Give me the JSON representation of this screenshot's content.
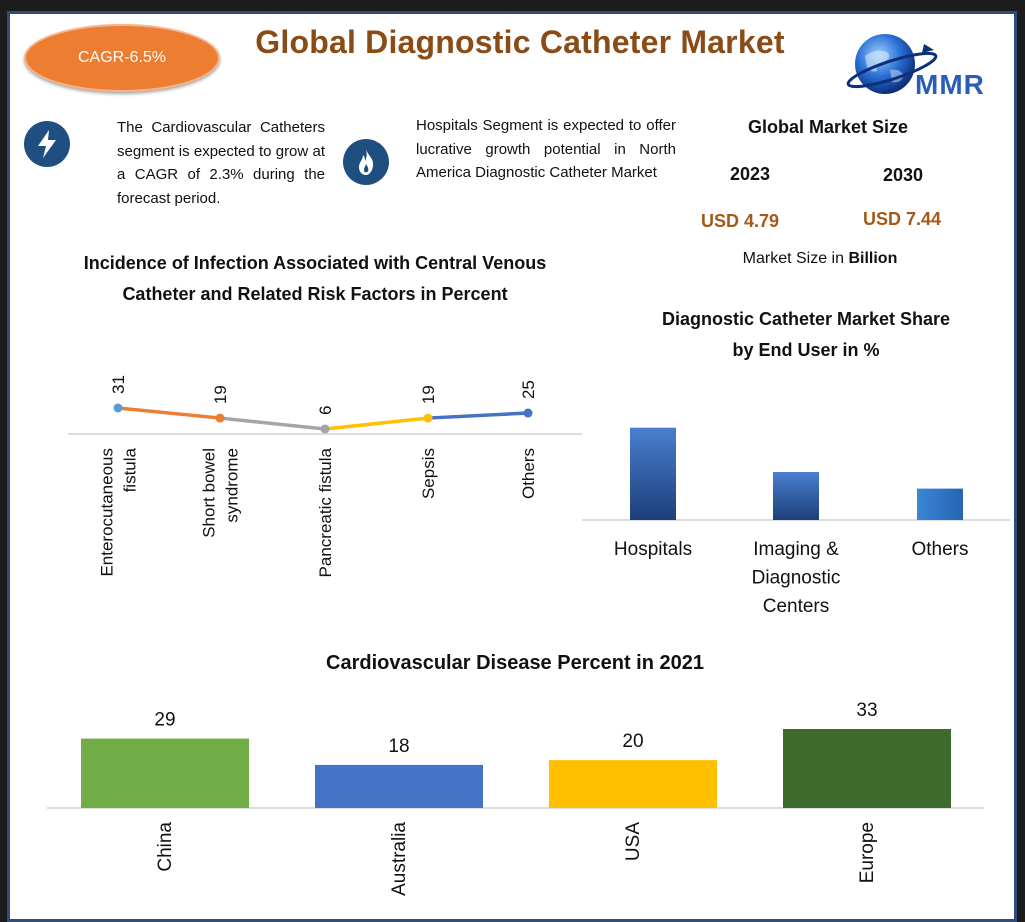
{
  "header": {
    "cagr_badge": "CAGR-6.5%",
    "title": "Global Diagnostic Catheter Market",
    "logo_text": "MMR"
  },
  "insights": [
    {
      "icon": "lightning-icon",
      "text": "The Cardiovascular Catheters segment is expected to grow at a CAGR of 2.3% during the forecast period."
    },
    {
      "icon": "flame-icon",
      "text": "Hospitals Segment is expected to offer lucrative growth potential in North America Diagnostic Catheter Market"
    }
  ],
  "market_size": {
    "title": "Global Market Size",
    "year_1": "2023",
    "year_2": "2030",
    "value_1": "USD 4.79",
    "value_2": "USD 7.44",
    "unit_prefix": "Market Size in",
    "unit_bold": "Billion"
  },
  "colors": {
    "title_brown": "#8a4b16",
    "value_brown": "#a45a16",
    "badge_orange": "#ed7d31",
    "icon_blue": "#1f4f80",
    "frame_blue": "#2e4d7a"
  },
  "chart_data": [
    {
      "type": "line",
      "title_line1": "Incidence of Infection Associated with Central Venous",
      "title_line2": "Catheter and Related Risk Factors in Percent",
      "categories": [
        "Enterocutaneous fistula",
        "Short bowel syndrome",
        "Pancreatic fistula",
        "Sepsis",
        "Others"
      ],
      "category_lines": [
        [
          "Enterocutaneous",
          "fistula"
        ],
        [
          "Short bowel",
          "syndrome"
        ],
        [
          "Pancreatic fistula"
        ],
        [
          "Sepsis"
        ],
        [
          "Others"
        ]
      ],
      "values": [
        31,
        19,
        6,
        19,
        25
      ],
      "segment_colors": [
        "#ed7d31",
        "#a5a5a5",
        "#ffc000",
        "#4472c4"
      ],
      "point_colors": [
        "#5b9bd5",
        "#ed7d31",
        "#a5a5a5",
        "#ffc000",
        "#4472c4"
      ],
      "ylim": [
        0,
        40
      ],
      "grid": false
    },
    {
      "type": "bar",
      "title_line1": "Diagnostic Catheter Market Share",
      "title_line2": "by End User in %",
      "categories": [
        "Hospitals",
        "Imaging & Diagnostic Centers",
        "Others"
      ],
      "category_lines": [
        [
          "Hospitals"
        ],
        [
          "Imaging &",
          "Diagnostic",
          "Centers"
        ],
        [
          "Others"
        ]
      ],
      "values": [
        50,
        26,
        17
      ],
      "ylim": [
        0,
        52
      ],
      "grid": false
    },
    {
      "type": "bar",
      "title": "Cardiovascular Disease Percent in 2021",
      "categories": [
        "China",
        "Australia",
        "USA",
        "Europe"
      ],
      "values": [
        29,
        18,
        20,
        33
      ],
      "colors": [
        "#70ad47",
        "#4472c4",
        "#ffc000",
        "#3e6b2b"
      ],
      "ylim": [
        0,
        33
      ],
      "grid": false
    }
  ]
}
